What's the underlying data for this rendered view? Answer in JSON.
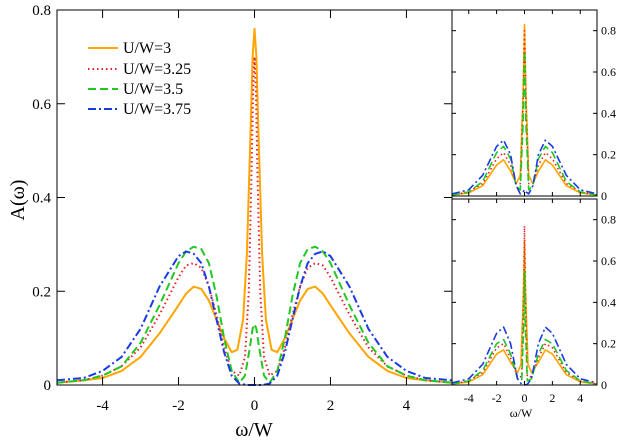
{
  "colors": {
    "orange": "#ffa500",
    "red": "#e8202a",
    "green": "#22c822",
    "blue": "#1a3ae6"
  },
  "chart_data": [
    {
      "type": "line",
      "panel": "main",
      "xlabel": "ω/W",
      "ylabel": "A(ω)",
      "xlim": [
        -5.2,
        5.2
      ],
      "ylim": [
        0,
        0.8
      ],
      "xticks": [
        -4,
        -2,
        0,
        2,
        4
      ],
      "yticks": [
        0,
        0.2,
        0.4,
        0.6,
        0.8
      ],
      "xtick_labels": [
        "-4",
        "-2",
        "0",
        "2",
        "4"
      ],
      "ytick_labels": [
        "0",
        "0.2",
        "0.4",
        "0.6",
        "0.8"
      ],
      "legend_position": "top-left",
      "series": [
        {
          "name": "U/W=3",
          "style": "solid",
          "color": "orange",
          "x": [
            -5.2,
            -4.5,
            -4,
            -3.5,
            -3,
            -2.5,
            -2,
            -1.8,
            -1.6,
            -1.4,
            -1.2,
            -1,
            -0.8,
            -0.6,
            -0.45,
            -0.3,
            -0.2,
            -0.1,
            -0.05,
            0,
            0.05,
            0.1,
            0.2,
            0.3,
            0.45,
            0.6,
            0.8,
            1,
            1.2,
            1.4,
            1.6,
            1.8,
            2,
            2.5,
            3,
            3.5,
            4,
            4.5,
            5.2
          ],
          "y": [
            0.005,
            0.01,
            0.015,
            0.03,
            0.06,
            0.11,
            0.17,
            0.195,
            0.21,
            0.205,
            0.18,
            0.14,
            0.1,
            0.07,
            0.075,
            0.14,
            0.28,
            0.55,
            0.7,
            0.76,
            0.7,
            0.55,
            0.28,
            0.14,
            0.075,
            0.07,
            0.1,
            0.14,
            0.18,
            0.205,
            0.21,
            0.195,
            0.17,
            0.11,
            0.06,
            0.03,
            0.015,
            0.01,
            0.005
          ]
        },
        {
          "name": "U/W=3.25",
          "style": "dotted",
          "color": "red",
          "x": [
            -5.2,
            -4.5,
            -4,
            -3.5,
            -3,
            -2.5,
            -2,
            -1.8,
            -1.6,
            -1.4,
            -1.2,
            -1,
            -0.8,
            -0.6,
            -0.4,
            -0.25,
            -0.15,
            -0.08,
            -0.04,
            0,
            0.04,
            0.08,
            0.15,
            0.25,
            0.4,
            0.6,
            0.8,
            1,
            1.2,
            1.4,
            1.6,
            1.8,
            2,
            2.5,
            3,
            3.5,
            4,
            4.5,
            5.2
          ],
          "y": [
            0.005,
            0.01,
            0.02,
            0.04,
            0.08,
            0.15,
            0.23,
            0.255,
            0.26,
            0.25,
            0.21,
            0.15,
            0.08,
            0.03,
            0.02,
            0.06,
            0.2,
            0.45,
            0.62,
            0.7,
            0.62,
            0.45,
            0.2,
            0.06,
            0.02,
            0.03,
            0.08,
            0.15,
            0.21,
            0.25,
            0.26,
            0.255,
            0.23,
            0.15,
            0.08,
            0.04,
            0.02,
            0.01,
            0.005
          ]
        },
        {
          "name": "U/W=3.5",
          "style": "dashed",
          "color": "green",
          "x": [
            -5.2,
            -4.5,
            -4,
            -3.5,
            -3,
            -2.5,
            -2,
            -1.8,
            -1.6,
            -1.4,
            -1.2,
            -1,
            -0.8,
            -0.6,
            -0.4,
            -0.25,
            -0.12,
            -0.05,
            0,
            0.05,
            0.12,
            0.25,
            0.4,
            0.6,
            0.8,
            1,
            1.2,
            1.4,
            1.6,
            1.8,
            2,
            2.5,
            3,
            3.5,
            4,
            4.5,
            5.2
          ],
          "y": [
            0.005,
            0.01,
            0.02,
            0.04,
            0.09,
            0.17,
            0.26,
            0.285,
            0.295,
            0.29,
            0.26,
            0.19,
            0.1,
            0.03,
            0.005,
            0.02,
            0.08,
            0.12,
            0.13,
            0.12,
            0.08,
            0.02,
            0.005,
            0.03,
            0.1,
            0.19,
            0.26,
            0.29,
            0.295,
            0.285,
            0.26,
            0.17,
            0.09,
            0.04,
            0.02,
            0.01,
            0.005
          ]
        },
        {
          "name": "U/W=3.75",
          "style": "dashdot",
          "color": "blue",
          "x": [
            -5.2,
            -4.5,
            -4,
            -3.5,
            -3,
            -2.5,
            -2,
            -1.8,
            -1.6,
            -1.4,
            -1.2,
            -1,
            -0.8,
            -0.6,
            -0.4,
            -0.2,
            0,
            0.2,
            0.4,
            0.6,
            0.8,
            1,
            1.2,
            1.4,
            1.6,
            1.8,
            2,
            2.5,
            3,
            3.5,
            4,
            4.5,
            5.2
          ],
          "y": [
            0.01,
            0.015,
            0.03,
            0.06,
            0.12,
            0.21,
            0.275,
            0.285,
            0.28,
            0.26,
            0.21,
            0.14,
            0.07,
            0.02,
            0.003,
            0,
            0,
            0,
            0.003,
            0.02,
            0.07,
            0.14,
            0.21,
            0.26,
            0.28,
            0.285,
            0.275,
            0.21,
            0.12,
            0.06,
            0.03,
            0.015,
            0.01
          ]
        }
      ]
    },
    {
      "type": "line",
      "panel": "inset-top",
      "xlim": [
        -5.2,
        5.2
      ],
      "ylim": [
        0,
        0.9
      ],
      "yticks": [
        0,
        0.2,
        0.4,
        0.6,
        0.8
      ],
      "ytick_labels": [
        "0",
        "0.2",
        "0.4",
        "0.6",
        "0.8"
      ],
      "series": [
        {
          "color": "orange",
          "style": "solid",
          "x": [
            -5.2,
            -4,
            -3,
            -2,
            -1.5,
            -1,
            -0.6,
            -0.3,
            -0.1,
            0,
            0.1,
            0.3,
            0.6,
            1,
            1.5,
            2,
            3,
            4,
            5.2
          ],
          "y": [
            0.005,
            0.015,
            0.05,
            0.15,
            0.175,
            0.12,
            0.06,
            0.1,
            0.5,
            0.83,
            0.5,
            0.1,
            0.06,
            0.12,
            0.175,
            0.15,
            0.05,
            0.015,
            0.005
          ]
        },
        {
          "color": "red",
          "style": "dotted",
          "x": [
            -5.2,
            -4,
            -3,
            -2,
            -1.5,
            -1,
            -0.6,
            -0.3,
            -0.1,
            0,
            0.1,
            0.3,
            0.6,
            1,
            1.5,
            2,
            3,
            4,
            5.2
          ],
          "y": [
            0.005,
            0.02,
            0.06,
            0.18,
            0.21,
            0.15,
            0.06,
            0.06,
            0.45,
            0.8,
            0.45,
            0.06,
            0.06,
            0.15,
            0.21,
            0.18,
            0.06,
            0.02,
            0.005
          ]
        },
        {
          "color": "green",
          "style": "dashed",
          "x": [
            -5.2,
            -4,
            -3,
            -2,
            -1.5,
            -1,
            -0.6,
            -0.3,
            -0.1,
            0,
            0.1,
            0.3,
            0.6,
            1,
            1.5,
            2,
            3,
            4,
            5.2
          ],
          "y": [
            0.005,
            0.02,
            0.07,
            0.21,
            0.24,
            0.18,
            0.05,
            0.03,
            0.35,
            0.7,
            0.35,
            0.03,
            0.05,
            0.18,
            0.24,
            0.21,
            0.07,
            0.02,
            0.005
          ]
        },
        {
          "color": "blue",
          "style": "dashdot",
          "x": [
            -5.2,
            -4,
            -3,
            -2,
            -1.5,
            -1,
            -0.6,
            -0.3,
            -0.1,
            0,
            0.1,
            0.3,
            0.6,
            1,
            1.5,
            2,
            3,
            4,
            5.2
          ],
          "y": [
            0.01,
            0.03,
            0.1,
            0.24,
            0.27,
            0.2,
            0.05,
            0.01,
            0.02,
            0.03,
            0.02,
            0.01,
            0.05,
            0.2,
            0.27,
            0.24,
            0.1,
            0.03,
            0.01
          ]
        }
      ]
    },
    {
      "type": "line",
      "panel": "inset-bottom",
      "xlabel": "ω/W",
      "xlim": [
        -5.2,
        5.2
      ],
      "ylim": [
        0,
        0.9
      ],
      "xticks": [
        -4,
        -2,
        0,
        2,
        4
      ],
      "xtick_labels": [
        "-4",
        "-2",
        "0",
        "2",
        "4"
      ],
      "yticks": [
        0,
        0.2,
        0.4,
        0.6,
        0.8
      ],
      "ytick_labels": [
        "0",
        "0.2",
        "0.4",
        "0.6",
        "0.8"
      ],
      "series": [
        {
          "color": "orange",
          "style": "solid",
          "x": [
            -5.2,
            -4,
            -3,
            -2,
            -1.5,
            -1,
            -0.5,
            -0.25,
            -0.08,
            0,
            0.08,
            0.25,
            0.5,
            1,
            1.5,
            2,
            3,
            4,
            5.2
          ],
          "y": [
            0.005,
            0.015,
            0.05,
            0.15,
            0.17,
            0.11,
            0.06,
            0.1,
            0.45,
            0.7,
            0.45,
            0.1,
            0.06,
            0.11,
            0.17,
            0.15,
            0.05,
            0.015,
            0.005
          ]
        },
        {
          "color": "red",
          "style": "dotted",
          "x": [
            -5.2,
            -4,
            -3,
            -2,
            -1.5,
            -1,
            -0.5,
            -0.2,
            -0.06,
            0,
            0.06,
            0.2,
            0.5,
            1,
            1.5,
            2,
            3,
            4,
            5.2
          ],
          "y": [
            0.005,
            0.02,
            0.06,
            0.18,
            0.2,
            0.13,
            0.04,
            0.04,
            0.45,
            0.77,
            0.45,
            0.04,
            0.04,
            0.13,
            0.2,
            0.18,
            0.06,
            0.02,
            0.005
          ]
        },
        {
          "color": "green",
          "style": "dashed",
          "x": [
            -5.2,
            -4,
            -3,
            -2,
            -1.5,
            -1,
            -0.5,
            -0.2,
            -0.05,
            0,
            0.05,
            0.2,
            0.5,
            1,
            1.5,
            2,
            3,
            4,
            5.2
          ],
          "y": [
            0.005,
            0.02,
            0.07,
            0.2,
            0.22,
            0.15,
            0.03,
            0.02,
            0.3,
            0.55,
            0.3,
            0.02,
            0.03,
            0.15,
            0.22,
            0.2,
            0.07,
            0.02,
            0.005
          ]
        },
        {
          "color": "blue",
          "style": "dashdot",
          "x": [
            -5.2,
            -4,
            -3,
            -2,
            -1.5,
            -1,
            -0.5,
            -0.2,
            0,
            0.2,
            0.5,
            1,
            1.5,
            2,
            3,
            4,
            5.2
          ],
          "y": [
            0.01,
            0.03,
            0.1,
            0.25,
            0.28,
            0.2,
            0.03,
            0.003,
            0,
            0.003,
            0.03,
            0.2,
            0.28,
            0.25,
            0.1,
            0.03,
            0.01
          ]
        }
      ]
    }
  ]
}
